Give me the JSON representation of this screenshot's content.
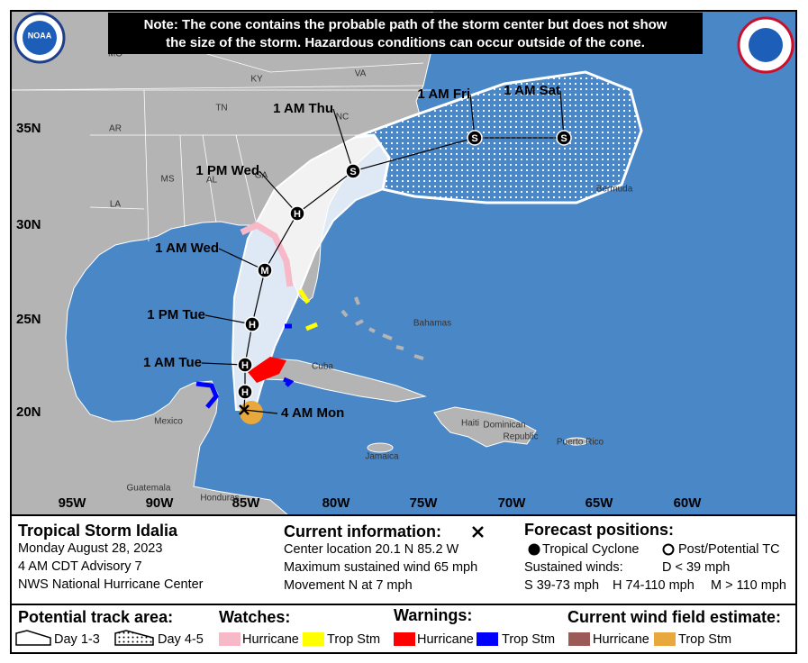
{
  "header": {
    "note_lines": [
      "Note: The cone contains the probable path of the storm center but does not show",
      "the size of the storm. Hazardous conditions can occur outside of the cone."
    ],
    "logo_text": "NOAA"
  },
  "map": {
    "lat_labels": [
      "35N",
      "30N",
      "25N",
      "20N"
    ],
    "lon_labels": [
      "95W",
      "90W",
      "85W",
      "80W",
      "75W",
      "70W",
      "65W",
      "60W"
    ],
    "places": [
      "MO",
      "KY",
      "VA",
      "TN",
      "NC",
      "AR",
      "MS",
      "AL",
      "GA",
      "LA",
      "Bermuda",
      "Bahamas",
      "Cuba",
      "Mexico",
      "Haiti",
      "Dominican",
      "Republic",
      "Puerto Rico",
      "Jamaica",
      "Guatemala",
      "Honduras"
    ],
    "track": [
      {
        "label": "4 AM Mon"
      },
      {
        "symbol": "H"
      },
      {
        "symbol": "H",
        "label": "1 AM Tue"
      },
      {
        "symbol": "H",
        "label": "1 PM Tue"
      },
      {
        "symbol": "M",
        "label": "1 AM Wed"
      },
      {
        "symbol": "H",
        "label": "1 PM Wed"
      },
      {
        "symbol": "S",
        "label": "1 AM Thu"
      },
      {
        "symbol": "S",
        "label": "1 AM Fri"
      },
      {
        "symbol": "S",
        "label": "1 AM Sat"
      }
    ]
  },
  "info": {
    "storm": {
      "name": "Tropical Storm Idalia",
      "lines": [
        "Monday August 28, 2023",
        "4 AM CDT Advisory 7",
        "NWS National Hurricane Center"
      ]
    },
    "current": {
      "title": "Current information:",
      "lines": [
        "Center location 20.1 N 85.2 W",
        "Maximum sustained wind 65 mph",
        "Movement N at 7 mph"
      ]
    },
    "forecast": {
      "title": "Forecast positions:",
      "tropical": "Tropical Cyclone",
      "post": "Post/Potential TC",
      "winds_title": "Sustained winds:",
      "winds": [
        "D < 39 mph",
        "S 39-73 mph",
        "H 74-110 mph",
        "M > 110 mph"
      ]
    }
  },
  "legend": {
    "track_area": {
      "title": "Potential track area:",
      "items": [
        "Day 1-3",
        "Day 4-5"
      ]
    },
    "watches": {
      "title": "Watches:",
      "items": [
        "Hurricane",
        "Trop Stm"
      ]
    },
    "warnings": {
      "title": "Warnings:",
      "items": [
        "Hurricane",
        "Trop Stm"
      ]
    },
    "wind_field": {
      "title": "Current wind field estimate:",
      "items": [
        "Hurricane",
        "Trop Stm"
      ]
    }
  }
}
